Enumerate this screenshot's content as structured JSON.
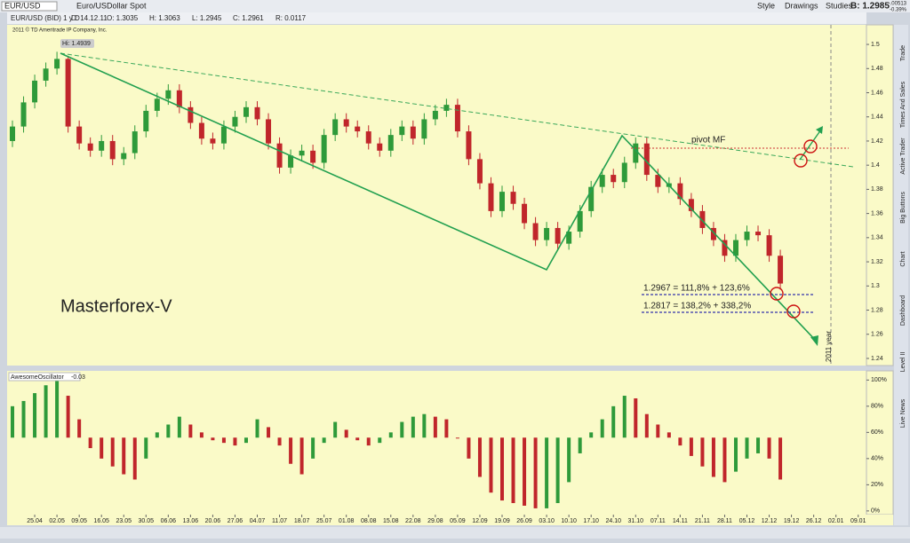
{
  "toolbar": {
    "symbol": "EUR/USD",
    "description": "Euro/USDollar Spot",
    "style": "Style",
    "drawings": "Drawings",
    "studies": "Studies",
    "bid": "B: 1.2985",
    "change": "-.00513",
    "change_pct": "-0.39%"
  },
  "info": {
    "chart_label": "EUR/USD (BID) 1 y D",
    "date": "D: 14.12.11",
    "open": "O: 1.3035",
    "high": "H: 1.3063",
    "low": "L: 1.2945",
    "close": "C: 1.2961",
    "range": "R: 0.0117"
  },
  "side_tabs": [
    "Trade",
    "Times And Sales",
    "Active Trader",
    "Big Buttons",
    "Chart",
    "Dashboard",
    "Level II",
    "Live News"
  ],
  "chart_data": [
    {
      "type": "candlestick",
      "copyright": "2011 © TD Ameritrade IP Company, Inc.",
      "hi_label": "Hi: 1.4939",
      "annotations": {
        "brand": "Masterforex-V",
        "pivot": "pivot MF",
        "target1": "1.2967 = 111,8% + 123,6%",
        "target2": "1.2817 = 138,2% + 338,2%",
        "year": "2011 year"
      },
      "up_color": "#2e9a3a",
      "down_color": "#c0262b",
      "grid": false,
      "xlim": [
        -1.24,
        37.37
      ],
      "ylim": [
        1.2341,
        1.5162
      ],
      "yticks": [
        1.24,
        1.26,
        1.28,
        1.3,
        1.32,
        1.34,
        1.36,
        1.38,
        1.4,
        1.42,
        1.44,
        1.46,
        1.48,
        1.5
      ],
      "xticks": [
        {
          "value": 0,
          "label": "25.04"
        },
        {
          "value": 1,
          "label": "02.05"
        },
        {
          "value": 2,
          "label": "09.05"
        },
        {
          "value": 3,
          "label": "16.05"
        },
        {
          "value": 4,
          "label": "23.05"
        },
        {
          "value": 5,
          "label": "30.05"
        },
        {
          "value": 6,
          "label": "06.06"
        },
        {
          "value": 7,
          "label": "13.06"
        },
        {
          "value": 8,
          "label": "20.06"
        },
        {
          "value": 9,
          "label": "27.06"
        },
        {
          "value": 10,
          "label": "04.07"
        },
        {
          "value": 11,
          "label": "11.07"
        },
        {
          "value": 12,
          "label": "18.07"
        },
        {
          "value": 13,
          "label": "25.07"
        },
        {
          "value": 14,
          "label": "01.08"
        },
        {
          "value": 15,
          "label": "08.08"
        },
        {
          "value": 16,
          "label": "15.08"
        },
        {
          "value": 17,
          "label": "22.08"
        },
        {
          "value": 18,
          "label": "29.08"
        },
        {
          "value": 19,
          "label": "05.09"
        },
        {
          "value": 20,
          "label": "12.09"
        },
        {
          "value": 21,
          "label": "19.09"
        },
        {
          "value": 22,
          "label": "26.09"
        },
        {
          "value": 23,
          "label": "03.10"
        },
        {
          "value": 24,
          "label": "10.10"
        },
        {
          "value": 25,
          "label": "17.10"
        },
        {
          "value": 26,
          "label": "24.10"
        },
        {
          "value": 27,
          "label": "31.10"
        },
        {
          "value": 28,
          "label": "07.11"
        },
        {
          "value": 29,
          "label": "14.11"
        },
        {
          "value": 30,
          "label": "21.11"
        },
        {
          "value": 31,
          "label": "28.11"
        },
        {
          "value": 32,
          "label": "05.12"
        },
        {
          "value": 33,
          "label": "12.12"
        },
        {
          "value": 34,
          "label": "19.12"
        },
        {
          "value": 35,
          "label": "26.12"
        },
        {
          "value": 36,
          "label": "02.01"
        },
        {
          "value": 37,
          "label": "09.01"
        }
      ],
      "x": [
        -1,
        -0.5,
        0,
        0.5,
        1,
        1.5,
        2,
        2.5,
        3,
        3.5,
        4,
        4.5,
        5,
        5.5,
        6,
        6.5,
        7,
        7.5,
        8,
        8.5,
        9,
        9.5,
        10,
        10.5,
        11,
        11.5,
        12,
        12.5,
        13,
        13.5,
        14,
        14.5,
        15,
        15.5,
        16,
        16.5,
        17,
        17.5,
        18,
        18.5,
        19,
        19.5,
        20,
        20.5,
        21,
        21.5,
        22,
        22.5,
        23,
        23.5,
        24,
        24.5,
        25,
        25.5,
        26,
        26.5,
        27,
        27.5,
        28,
        28.5,
        29,
        29.5,
        30,
        30.5,
        31,
        31.5,
        32,
        32.5,
        33,
        33.5
      ],
      "open": [
        1.42,
        1.432,
        1.452,
        1.47,
        1.48,
        1.488,
        1.432,
        1.418,
        1.412,
        1.42,
        1.405,
        1.41,
        1.428,
        1.445,
        1.455,
        1.462,
        1.448,
        1.435,
        1.422,
        1.418,
        1.432,
        1.44,
        1.448,
        1.438,
        1.418,
        1.398,
        1.408,
        1.412,
        1.402,
        1.425,
        1.438,
        1.432,
        1.428,
        1.418,
        1.412,
        1.425,
        1.432,
        1.422,
        1.438,
        1.445,
        1.45,
        1.428,
        1.405,
        1.385,
        1.362,
        1.378,
        1.368,
        1.352,
        1.338,
        1.348,
        1.335,
        1.345,
        1.362,
        1.382,
        1.392,
        1.386,
        1.402,
        1.418,
        1.392,
        1.382,
        1.385,
        1.372,
        1.362,
        1.348,
        1.338,
        1.325,
        1.338,
        1.345,
        1.342,
        1.325
      ],
      "high": [
        1.437,
        1.457,
        1.475,
        1.485,
        1.4939,
        1.49,
        1.437,
        1.423,
        1.425,
        1.425,
        1.415,
        1.433,
        1.45,
        1.46,
        1.467,
        1.467,
        1.453,
        1.44,
        1.427,
        1.437,
        1.445,
        1.453,
        1.453,
        1.443,
        1.423,
        1.413,
        1.417,
        1.417,
        1.43,
        1.443,
        1.443,
        1.437,
        1.433,
        1.423,
        1.43,
        1.437,
        1.437,
        1.443,
        1.45,
        1.455,
        1.455,
        1.433,
        1.41,
        1.39,
        1.383,
        1.383,
        1.373,
        1.357,
        1.353,
        1.353,
        1.35,
        1.367,
        1.387,
        1.397,
        1.397,
        1.407,
        1.423,
        1.423,
        1.397,
        1.39,
        1.39,
        1.377,
        1.367,
        1.353,
        1.343,
        1.343,
        1.35,
        1.35,
        1.347,
        1.33
      ],
      "low": [
        1.415,
        1.427,
        1.447,
        1.465,
        1.475,
        1.427,
        1.413,
        1.407,
        1.407,
        1.4,
        1.4,
        1.405,
        1.423,
        1.44,
        1.45,
        1.443,
        1.43,
        1.417,
        1.413,
        1.413,
        1.427,
        1.435,
        1.433,
        1.413,
        1.393,
        1.393,
        1.403,
        1.397,
        1.397,
        1.42,
        1.427,
        1.423,
        1.413,
        1.407,
        1.407,
        1.42,
        1.417,
        1.417,
        1.433,
        1.44,
        1.423,
        1.4,
        1.38,
        1.357,
        1.357,
        1.363,
        1.347,
        1.333,
        1.333,
        1.33,
        1.33,
        1.34,
        1.357,
        1.377,
        1.381,
        1.381,
        1.397,
        1.387,
        1.377,
        1.377,
        1.367,
        1.357,
        1.343,
        1.333,
        1.32,
        1.32,
        1.333,
        1.337,
        1.32,
        1.297
      ],
      "close": [
        1.432,
        1.452,
        1.47,
        1.48,
        1.488,
        1.432,
        1.418,
        1.412,
        1.42,
        1.405,
        1.41,
        1.428,
        1.445,
        1.455,
        1.462,
        1.448,
        1.435,
        1.422,
        1.418,
        1.432,
        1.44,
        1.448,
        1.438,
        1.418,
        1.398,
        1.408,
        1.412,
        1.402,
        1.425,
        1.438,
        1.432,
        1.428,
        1.418,
        1.412,
        1.425,
        1.432,
        1.422,
        1.438,
        1.445,
        1.45,
        1.428,
        1.405,
        1.385,
        1.362,
        1.378,
        1.368,
        1.352,
        1.338,
        1.348,
        1.335,
        1.345,
        1.362,
        1.382,
        1.392,
        1.386,
        1.402,
        1.418,
        1.392,
        1.382,
        1.385,
        1.372,
        1.362,
        1.348,
        1.338,
        1.325,
        1.338,
        1.345,
        1.342,
        1.325,
        1.302
      ]
    },
    {
      "type": "oscillator",
      "title": "AwesomeOscillator",
      "last_value": "-0.03",
      "up_color": "#2e9a3a",
      "down_color": "#c0262b",
      "xlim": [
        -1.24,
        37.37
      ],
      "ylim": [
        -2.8,
        107
      ],
      "baseline": 56,
      "yticks": [
        {
          "value": 0,
          "label": "0%"
        },
        {
          "value": 20,
          "label": "20%"
        },
        {
          "value": 40,
          "label": "40%"
        },
        {
          "value": 60,
          "label": "60%"
        },
        {
          "value": 80,
          "label": "80%"
        },
        {
          "value": 100,
          "label": "100%"
        }
      ],
      "x": [
        -1,
        -0.5,
        0,
        0.5,
        1,
        1.5,
        2,
        2.5,
        3,
        3.5,
        4,
        4.5,
        5,
        5.5,
        6,
        6.5,
        7,
        7.5,
        8,
        8.5,
        9,
        9.5,
        10,
        10.5,
        11,
        11.5,
        12,
        12.5,
        13,
        13.5,
        14,
        14.5,
        15,
        15.5,
        16,
        16.5,
        17,
        17.5,
        18,
        18.5,
        19,
        19.5,
        20,
        20.5,
        21,
        21.5,
        22,
        22.5,
        23,
        23.5,
        24,
        24.5,
        25,
        25.5,
        26,
        26.5,
        27,
        27.5,
        28,
        28.5,
        29,
        29.5,
        30,
        30.5,
        31,
        31.5,
        32,
        32.5,
        33,
        33.5
      ],
      "values": [
        80,
        84,
        90,
        96,
        100,
        88,
        70,
        48,
        40,
        34,
        28,
        24,
        40,
        60,
        66,
        72,
        66,
        60,
        54,
        52,
        50,
        52,
        70,
        64,
        50,
        36,
        28,
        40,
        52,
        68,
        62,
        54,
        50,
        52,
        60,
        68,
        72,
        74,
        72,
        70,
        56,
        40,
        26,
        14,
        8,
        6,
        4,
        2,
        2,
        6,
        22,
        44,
        60,
        70,
        80,
        88,
        86,
        74,
        66,
        60,
        50,
        42,
        34,
        26,
        22,
        30,
        40,
        44,
        40,
        24
      ]
    }
  ]
}
